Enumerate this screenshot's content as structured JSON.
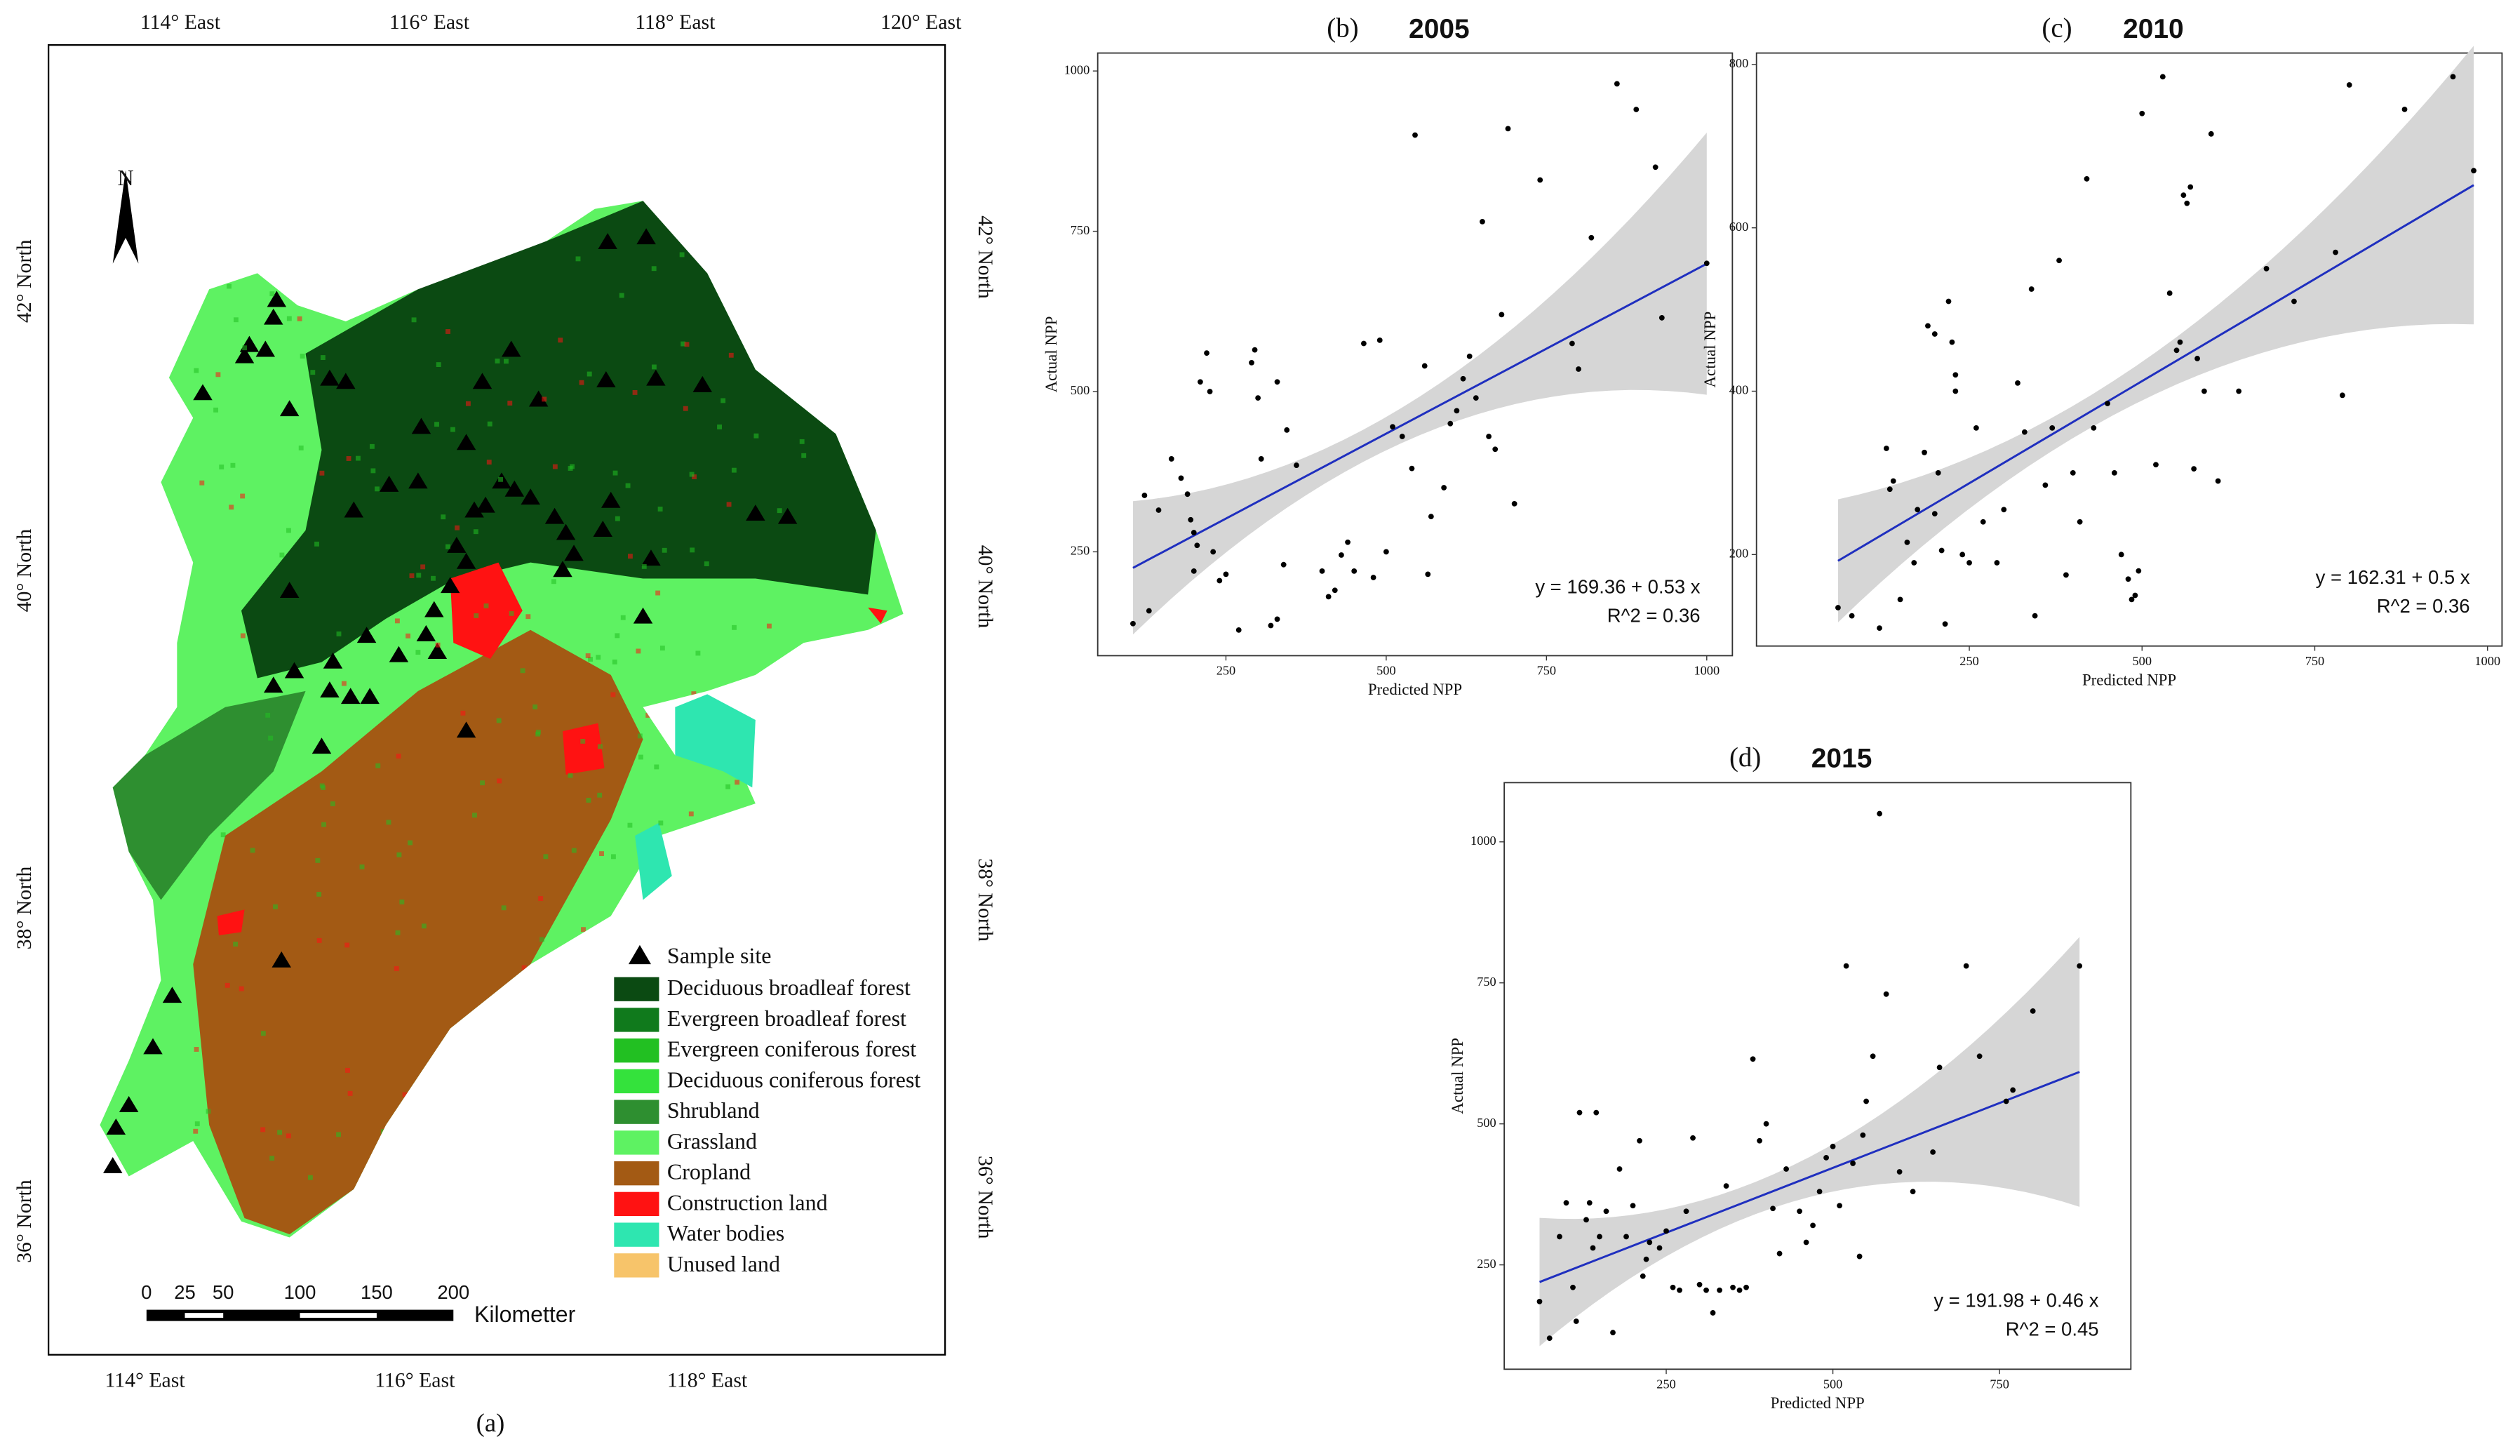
{
  "map": {
    "caption": "(a)",
    "north": "N",
    "top_labels": [
      "114° East",
      "116° East",
      "118° East",
      "120° East"
    ],
    "bottom_labels": [
      "114° East",
      "116° East",
      "118° East"
    ],
    "left_labels": [
      "42° North",
      "40° North",
      "38° North",
      "36° North"
    ],
    "right_labels": [
      "42° North",
      "40° North",
      "38° North",
      "36° North"
    ],
    "legend": {
      "marker": "Sample site",
      "items": [
        {
          "label": "Deciduous broadleaf forest",
          "color": "#0b4a12"
        },
        {
          "label": "Evergreen broadleaf forest",
          "color": "#107a1c"
        },
        {
          "label": "Evergreen coniferous forest",
          "color": "#22c022"
        },
        {
          "label": "Deciduous coniferous forest",
          "color": "#34e23c"
        },
        {
          "label": "Shrubland",
          "color": "#2e8f30"
        },
        {
          "label": "Grassland",
          "color": "#5ef262"
        },
        {
          "label": "Cropland",
          "color": "#a35a14"
        },
        {
          "label": "Construction land",
          "color": "#ff1212"
        },
        {
          "label": "Water bodies",
          "color": "#2ee6b0"
        },
        {
          "label": "Unused land",
          "color": "#f7c46a"
        }
      ]
    },
    "scale_bar": {
      "ticks": [
        0,
        25,
        50,
        100,
        150,
        200
      ],
      "unit": "Kilometter"
    }
  },
  "chart_data": [
    {
      "type": "scatter",
      "panel": "(b)",
      "title": "2005",
      "xlabel": "Predicted NPP",
      "ylabel": "Actual NPP",
      "xlim": [
        50,
        1040
      ],
      "ylim": [
        88,
        1028
      ],
      "xticks": [
        250,
        500,
        750,
        1000
      ],
      "yticks": [
        250,
        500,
        750,
        1000
      ],
      "color": "#000000",
      "line_color": "#1f2fbf",
      "band_color": "#d6d6d6",
      "fit": {
        "label": "y = 169.36 + 0.53 x",
        "r2_label": "R^2 = 0.36",
        "intercept": 169.36,
        "slope": 0.53
      },
      "x": [
        105,
        130,
        123,
        145,
        165,
        180,
        190,
        195,
        200,
        205,
        200,
        210,
        220,
        225,
        230,
        240,
        250,
        270,
        290,
        295,
        300,
        305,
        320,
        330,
        330,
        345,
        340,
        360,
        400,
        410,
        420,
        430,
        440,
        450,
        465,
        480,
        490,
        500,
        510,
        525,
        540,
        545,
        560,
        565,
        570,
        590,
        600,
        610,
        620,
        630,
        640,
        650,
        660,
        670,
        680,
        690,
        700,
        740,
        790,
        800,
        820,
        860,
        890,
        920,
        930,
        1000
      ],
      "values": [
        138,
        158,
        338,
        315,
        395,
        365,
        340,
        300,
        280,
        260,
        220,
        515,
        560,
        500,
        250,
        205,
        215,
        128,
        545,
        565,
        490,
        395,
        135,
        145,
        515,
        440,
        230,
        385,
        220,
        180,
        190,
        245,
        265,
        220,
        575,
        210,
        580,
        250,
        445,
        430,
        380,
        900,
        540,
        215,
        305,
        350,
        450,
        470,
        520,
        555,
        490,
        765,
        430,
        410,
        620,
        910,
        325,
        830,
        575,
        535,
        740,
        980,
        940,
        850,
        615,
        700
      ]
    },
    {
      "type": "scatter",
      "panel": "(c)",
      "title": "2010",
      "xlabel": "Predicted NPP",
      "ylabel": "Actual NPP",
      "xlim": [
        -58,
        1021
      ],
      "ylim": [
        88,
        814
      ],
      "xticks": [
        250,
        500,
        750,
        1000
      ],
      "yticks": [
        200,
        400,
        600,
        800
      ],
      "color": "#000000",
      "line_color": "#1f2fbf",
      "band_color": "#d6d6d6",
      "fit": {
        "label": "y = 162.31 + 0.5 x",
        "r2_label": "R^2 = 0.36",
        "intercept": 162.31,
        "slope": 0.5
      },
      "x": [
        60,
        80,
        120,
        130,
        135,
        140,
        150,
        160,
        170,
        175,
        185,
        190,
        200,
        200,
        205,
        210,
        215,
        220,
        225,
        230,
        230,
        240,
        250,
        260,
        270,
        290,
        300,
        320,
        330,
        340,
        345,
        360,
        370,
        380,
        390,
        400,
        410,
        420,
        430,
        450,
        460,
        470,
        480,
        485,
        490,
        495,
        500,
        520,
        530,
        540,
        550,
        555,
        560,
        565,
        570,
        575,
        580,
        590,
        600,
        610,
        640,
        680,
        720,
        780,
        790,
        800,
        880,
        950,
        980
      ],
      "values": [
        135,
        125,
        110,
        330,
        280,
        290,
        145,
        215,
        190,
        255,
        325,
        480,
        470,
        250,
        300,
        205,
        115,
        510,
        460,
        400,
        420,
        200,
        190,
        355,
        240,
        190,
        255,
        410,
        350,
        525,
        125,
        285,
        355,
        560,
        175,
        300,
        240,
        660,
        355,
        385,
        300,
        200,
        170,
        145,
        150,
        180,
        740,
        310,
        785,
        520,
        450,
        460,
        640,
        630,
        650,
        305,
        440,
        400,
        715,
        290,
        400,
        550,
        510,
        570,
        395,
        775,
        745,
        785,
        670
      ]
    },
    {
      "type": "scatter",
      "panel": "(d)",
      "title": "2015",
      "xlabel": "Predicted NPP",
      "ylabel": "Actual NPP",
      "xlim": [
        7,
        947
      ],
      "ylim": [
        65,
        1105
      ],
      "xticks": [
        250,
        500,
        750
      ],
      "yticks": [
        250,
        500,
        750,
        1000
      ],
      "color": "#000000",
      "line_color": "#1f2fbf",
      "band_color": "#d6d6d6",
      "fit": {
        "label": "y = 191.98 + 0.46 x",
        "r2_label": "R^2 = 0.45",
        "intercept": 191.98,
        "slope": 0.46
      },
      "x": [
        60,
        75,
        90,
        100,
        110,
        115,
        120,
        130,
        135,
        140,
        145,
        150,
        160,
        170,
        180,
        190,
        200,
        210,
        215,
        220,
        225,
        240,
        250,
        260,
        270,
        280,
        290,
        300,
        310,
        320,
        330,
        340,
        350,
        360,
        370,
        380,
        390,
        400,
        410,
        420,
        430,
        450,
        460,
        470,
        480,
        490,
        500,
        510,
        520,
        530,
        540,
        545,
        550,
        560,
        570,
        580,
        600,
        620,
        650,
        660,
        700,
        720,
        760,
        770,
        800,
        870
      ],
      "values": [
        185,
        120,
        300,
        360,
        210,
        150,
        520,
        330,
        360,
        280,
        520,
        300,
        345,
        130,
        420,
        300,
        355,
        470,
        230,
        260,
        290,
        280,
        310,
        210,
        205,
        345,
        475,
        215,
        205,
        165,
        205,
        390,
        210,
        205,
        210,
        615,
        470,
        500,
        350,
        270,
        420,
        345,
        290,
        320,
        380,
        440,
        460,
        355,
        780,
        430,
        265,
        480,
        540,
        620,
        1050,
        730,
        415,
        380,
        450,
        600,
        780,
        620,
        540,
        560,
        700,
        780
      ]
    }
  ]
}
